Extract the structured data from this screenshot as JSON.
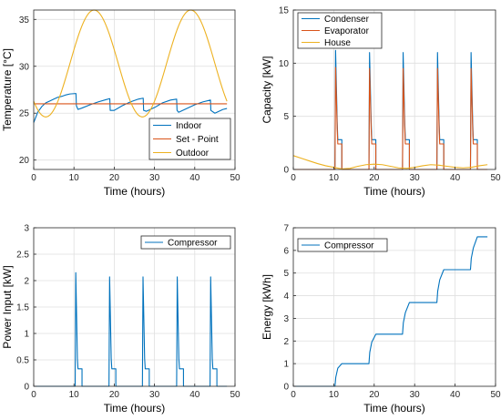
{
  "chart_data": [
    {
      "type": "line",
      "xlabel": "Time (hours)",
      "ylabel": "Temperature [°C]",
      "xlim": [
        0,
        50
      ],
      "ylim": [
        19,
        36
      ],
      "xticks": [
        0,
        10,
        20,
        30,
        40,
        50
      ],
      "yticks": [
        20,
        25,
        30,
        35
      ],
      "grid": true,
      "legend": "lower-right",
      "series": [
        {
          "name": "Indoor",
          "color": "#0072BD",
          "points": [
            [
              0,
              24.0
            ],
            [
              1,
              25.1
            ],
            [
              2,
              25.7
            ],
            [
              3,
              26.1
            ],
            [
              4,
              26.3
            ],
            [
              5,
              26.5
            ],
            [
              6,
              26.7
            ],
            [
              7,
              26.8
            ],
            [
              8,
              26.95
            ],
            [
              9,
              27.05
            ],
            [
              10.5,
              27.1
            ],
            [
              10.6,
              25.8
            ],
            [
              11,
              25.4
            ],
            [
              12,
              25.55
            ],
            [
              14,
              25.9
            ],
            [
              16,
              26.2
            ],
            [
              18,
              26.45
            ],
            [
              18.9,
              26.55
            ],
            [
              19,
              25.3
            ],
            [
              20,
              25.3
            ],
            [
              22,
              25.8
            ],
            [
              24,
              26.2
            ],
            [
              26,
              26.5
            ],
            [
              27.2,
              26.6
            ],
            [
              27.3,
              25.3
            ],
            [
              28,
              25.2
            ],
            [
              30,
              25.6
            ],
            [
              32,
              26.1
            ],
            [
              34,
              26.4
            ],
            [
              35.5,
              26.5
            ],
            [
              35.6,
              25.3
            ],
            [
              36,
              25.1
            ],
            [
              38,
              25.5
            ],
            [
              40,
              25.9
            ],
            [
              42,
              26.2
            ],
            [
              43.9,
              26.4
            ],
            [
              44,
              25.3
            ],
            [
              45,
              25.0
            ],
            [
              47,
              25.4
            ],
            [
              48,
              25.5
            ]
          ]
        },
        {
          "name": "Set - Point",
          "color": "#D95319",
          "points": [
            [
              0,
              26.0
            ],
            [
              48,
              26.0
            ]
          ]
        },
        {
          "name": "Outdoor",
          "color": "#EDB120",
          "fn": "sinusoid",
          "mean": 30.3,
          "amplitude": 5.7,
          "period_hours": 24,
          "peak_hour": 15,
          "x_range": [
            0,
            48
          ]
        }
      ]
    },
    {
      "type": "line",
      "xlabel": "Time (hours)",
      "ylabel": "Capacity [kW]",
      "xlim": [
        0,
        50
      ],
      "ylim": [
        0,
        15
      ],
      "xticks": [
        0,
        10,
        20,
        30,
        40,
        50
      ],
      "yticks": [
        0,
        5,
        10,
        15
      ],
      "grid": true,
      "legend": "top-left",
      "series": [
        {
          "name": "Condenser",
          "color": "#0072BD",
          "pulses": [
            {
              "start": 10.3,
              "peak": 11.2,
              "step": 2.8,
              "step_start": 11.0,
              "end": 12.0
            },
            {
              "start": 18.7,
              "peak": 11.0,
              "step": 2.8,
              "step_start": 19.4,
              "end": 20.4
            },
            {
              "start": 27.0,
              "peak": 11.0,
              "step": 2.8,
              "step_start": 27.7,
              "end": 28.7
            },
            {
              "start": 35.5,
              "peak": 11.0,
              "step": 2.8,
              "step_start": 36.2,
              "end": 37.2
            },
            {
              "start": 43.8,
              "peak": 11.0,
              "step": 2.8,
              "step_start": 44.5,
              "end": 45.5
            }
          ]
        },
        {
          "name": "Evaporator",
          "color": "#D95319",
          "pulses": [
            {
              "start": 10.3,
              "peak": 9.6,
              "step": 2.4,
              "step_start": 11.0,
              "end": 12.0
            },
            {
              "start": 18.7,
              "peak": 9.5,
              "step": 2.4,
              "step_start": 19.4,
              "end": 20.4
            },
            {
              "start": 27.0,
              "peak": 9.5,
              "step": 2.4,
              "step_start": 27.7,
              "end": 28.7
            },
            {
              "start": 35.5,
              "peak": 9.5,
              "step": 2.4,
              "step_start": 36.2,
              "end": 37.2
            },
            {
              "start": 43.8,
              "peak": 9.5,
              "step": 2.4,
              "step_start": 44.5,
              "end": 45.5
            }
          ]
        },
        {
          "name": "House",
          "color": "#EDB120",
          "points": [
            [
              0,
              1.3
            ],
            [
              2,
              1.05
            ],
            [
              4,
              0.8
            ],
            [
              6,
              0.55
            ],
            [
              8,
              0.35
            ],
            [
              10,
              0.2
            ],
            [
              12,
              0.05
            ],
            [
              14,
              0.1
            ],
            [
              16,
              0.3
            ],
            [
              18,
              0.45
            ],
            [
              20,
              0.5
            ],
            [
              22,
              0.45
            ],
            [
              24,
              0.3
            ],
            [
              26,
              0.15
            ],
            [
              28,
              0.1
            ],
            [
              30,
              0.2
            ],
            [
              32,
              0.35
            ],
            [
              34,
              0.45
            ],
            [
              36,
              0.4
            ],
            [
              38,
              0.3
            ],
            [
              40,
              0.2
            ],
            [
              42,
              0.15
            ],
            [
              44,
              0.2
            ],
            [
              46,
              0.35
            ],
            [
              48,
              0.45
            ]
          ]
        }
      ]
    },
    {
      "type": "line",
      "xlabel": "Time (hours)",
      "ylabel": "Power Input [kW]",
      "xlim": [
        0,
        50
      ],
      "ylim": [
        0,
        3
      ],
      "xticks": [
        0,
        10,
        20,
        30,
        40,
        50
      ],
      "yticks": [
        0,
        0.5,
        1,
        1.5,
        2,
        2.5,
        3
      ],
      "grid": true,
      "legend": "top-right",
      "series": [
        {
          "name": "Compressor",
          "color": "#0072BD",
          "pulses": [
            {
              "start": 10.3,
              "peak": 2.15,
              "step": 0.33,
              "step_start": 11.0,
              "end": 12.0
            },
            {
              "start": 18.7,
              "peak": 2.07,
              "step": 0.33,
              "step_start": 19.4,
              "end": 20.4
            },
            {
              "start": 27.0,
              "peak": 2.07,
              "step": 0.33,
              "step_start": 27.7,
              "end": 28.7
            },
            {
              "start": 35.5,
              "peak": 2.07,
              "step": 0.33,
              "step_start": 36.2,
              "end": 37.2
            },
            {
              "start": 43.8,
              "peak": 2.07,
              "step": 0.33,
              "step_start": 44.5,
              "end": 45.5
            }
          ]
        }
      ]
    },
    {
      "type": "line",
      "xlabel": "Time (hours)",
      "ylabel": "Energy [kWh]",
      "xlim": [
        0,
        50
      ],
      "ylim": [
        0,
        7
      ],
      "xticks": [
        0,
        10,
        20,
        30,
        40,
        50
      ],
      "yticks": [
        0,
        1,
        2,
        3,
        4,
        5,
        6,
        7
      ],
      "grid": true,
      "legend": "top-left",
      "series": [
        {
          "name": "Compressor",
          "color": "#0072BD",
          "points": [
            [
              0,
              0
            ],
            [
              10.3,
              0
            ],
            [
              10.5,
              0.4
            ],
            [
              11.0,
              0.8
            ],
            [
              12.0,
              1.0
            ],
            [
              18.7,
              1.0
            ],
            [
              18.9,
              1.5
            ],
            [
              19.4,
              1.95
            ],
            [
              20.4,
              2.3
            ],
            [
              27.0,
              2.3
            ],
            [
              27.2,
              2.8
            ],
            [
              27.7,
              3.25
            ],
            [
              28.7,
              3.7
            ],
            [
              35.5,
              3.7
            ],
            [
              35.7,
              4.2
            ],
            [
              36.2,
              4.7
            ],
            [
              37.2,
              5.15
            ],
            [
              43.8,
              5.15
            ],
            [
              44.0,
              5.65
            ],
            [
              44.5,
              6.1
            ],
            [
              45.5,
              6.6
            ],
            [
              48,
              6.6
            ]
          ]
        }
      ]
    }
  ]
}
